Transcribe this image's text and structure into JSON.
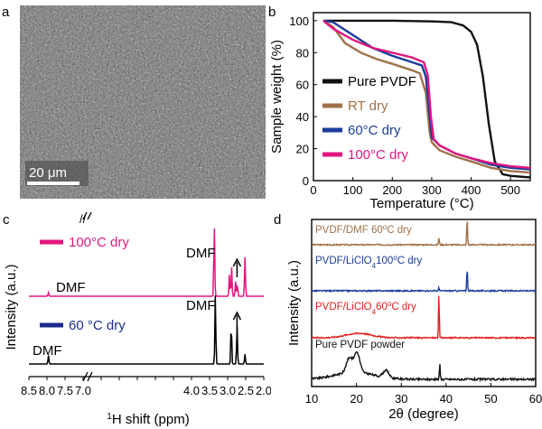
{
  "panels": {
    "a": {
      "letter": "a",
      "scale_bar": "20 μm"
    },
    "b": {
      "letter": "b"
    },
    "c": {
      "letter": "c"
    },
    "d": {
      "letter": "d"
    }
  },
  "colors": {
    "black": "#111111",
    "brown": "#a0714a",
    "blue": "#1a3d9c",
    "magenta": "#e0177f",
    "red": "#e02020",
    "navy": "#1c2b8c",
    "sem_base": "#6e6e6e"
  },
  "chart_data": [
    {
      "panel": "b",
      "type": "line",
      "xlabel": "Temperature (°C)",
      "ylabel": "Sample weight (%)",
      "xlim": [
        0,
        550
      ],
      "ylim": [
        0,
        105
      ],
      "xticks": [
        0,
        100,
        200,
        300,
        400,
        500
      ],
      "yticks": [
        0,
        20,
        40,
        60,
        80,
        100
      ],
      "legend_position": "right",
      "series": [
        {
          "name": "Pure PVDF",
          "color_key": "black",
          "x": [
            25,
            100,
            200,
            300,
            350,
            380,
            400,
            415,
            430,
            445,
            460,
            480,
            500,
            550
          ],
          "y": [
            100,
            100,
            100,
            99.5,
            99,
            97,
            93,
            85,
            65,
            35,
            12,
            4,
            3,
            2
          ]
        },
        {
          "name": "RT dry",
          "color_key": "brown",
          "x": [
            25,
            50,
            80,
            120,
            160,
            200,
            250,
            270,
            285,
            295,
            300,
            320,
            360,
            400,
            450,
            500,
            550
          ],
          "y": [
            100,
            96,
            86,
            80,
            76,
            73,
            69,
            67,
            55,
            30,
            24,
            19,
            15,
            12,
            8,
            6,
            5
          ]
        },
        {
          "name": "60°C dry",
          "color_key": "blue",
          "x": [
            25,
            50,
            100,
            150,
            200,
            250,
            275,
            285,
            295,
            300,
            320,
            360,
            400,
            450,
            500,
            550
          ],
          "y": [
            100,
            99,
            91,
            83,
            78,
            74,
            72,
            65,
            40,
            27,
            22,
            17,
            14,
            10,
            8,
            7
          ]
        },
        {
          "name": "100°C dry",
          "color_key": "magenta",
          "x": [
            25,
            50,
            100,
            150,
            200,
            250,
            280,
            290,
            298,
            305,
            320,
            360,
            400,
            450,
            500,
            550
          ],
          "y": [
            100,
            95,
            88,
            83,
            80,
            77,
            74,
            66,
            40,
            26,
            22,
            17,
            14,
            11,
            9,
            8
          ]
        }
      ]
    },
    {
      "panel": "c",
      "type": "line",
      "xlabel": "1H shift (ppm)",
      "ylabel": "Intensity (a.u.)",
      "xlim": [
        8.5,
        2.0
      ],
      "x_reversed": true,
      "xticks": [
        8.5,
        8.0,
        7.5,
        7.0,
        6.5,
        6.0,
        5.5,
        5.0,
        4.5,
        4.0,
        3.5,
        3.0,
        2.5,
        2.0
      ],
      "xtick_labels": [
        "8.5",
        "8.0",
        "7.5",
        "7.0",
        "",
        "",
        "",
        "",
        "",
        "4.0",
        "3.5",
        "3.0",
        "2.5",
        "2.0"
      ],
      "axis_break_at": [
        6.9,
        4.1
      ],
      "series": [
        {
          "name": "100°C dry",
          "color_key": "magenta",
          "label": "100°C dry",
          "peaks": [
            {
              "x": 7.96,
              "h": 3
            },
            {
              "x": 3.37,
              "h": 60
            },
            {
              "x": 2.95,
              "h": 18
            },
            {
              "x": 2.89,
              "h": 24
            },
            {
              "x": 2.78,
              "h": 12
            },
            {
              "x": 2.73,
              "h": 10
            },
            {
              "x": 2.52,
              "h": 32
            }
          ]
        },
        {
          "name": "60 °C dry",
          "color_key": "navy",
          "label": "60 °C dry",
          "peaks": [
            {
              "x": 7.96,
              "h": 7
            },
            {
              "x": 3.34,
              "h": 58
            },
            {
              "x": 2.9,
              "h": 34
            },
            {
              "x": 2.74,
              "h": 32
            },
            {
              "x": 2.52,
              "h": 8
            }
          ]
        }
      ],
      "annotations": [
        "DMF",
        "DMF",
        "DMF",
        "DMF"
      ]
    },
    {
      "panel": "d",
      "type": "line",
      "xlabel": "2θ (degree)",
      "ylabel": "Intensity (a.u.)",
      "xlim": [
        10,
        60
      ],
      "xticks": [
        10,
        20,
        30,
        40,
        50,
        60
      ],
      "series": [
        {
          "name": "PVDF/DMF 60°C dry",
          "color_key": "brown",
          "label": "PVDF/DMF 60°C dry",
          "peaks": [
            {
              "x": 38.4,
              "h": 8
            },
            {
              "x": 44.7,
              "h": 30
            }
          ]
        },
        {
          "name": "PVDF/LiClO4 100°C dry",
          "color_key": "blue",
          "label": "PVDF/LiClO4 100°C dry",
          "peaks": [
            {
              "x": 38.4,
              "h": 4
            },
            {
              "x": 44.7,
              "h": 26
            }
          ]
        },
        {
          "name": "PVDF/LiClO4 60°C dry",
          "color_key": "red",
          "label": "PVDF/LiClO4 60°C dry",
          "peaks": [
            {
              "x": 38.4,
              "h": 48
            }
          ],
          "humps": [
            {
              "x": 20.5,
              "h": 5,
              "w": 4
            }
          ]
        },
        {
          "name": "Pure PVDF powder",
          "color_key": "black",
          "label": "Pure PVDF powder",
          "peaks": [
            {
              "x": 18.4,
              "h": 16
            },
            {
              "x": 20.1,
              "h": 22
            },
            {
              "x": 26.6,
              "h": 8
            },
            {
              "x": 38.6,
              "h": 18
            }
          ],
          "humps": [
            {
              "x": 19.5,
              "h": 8,
              "w": 6
            }
          ]
        }
      ]
    }
  ]
}
